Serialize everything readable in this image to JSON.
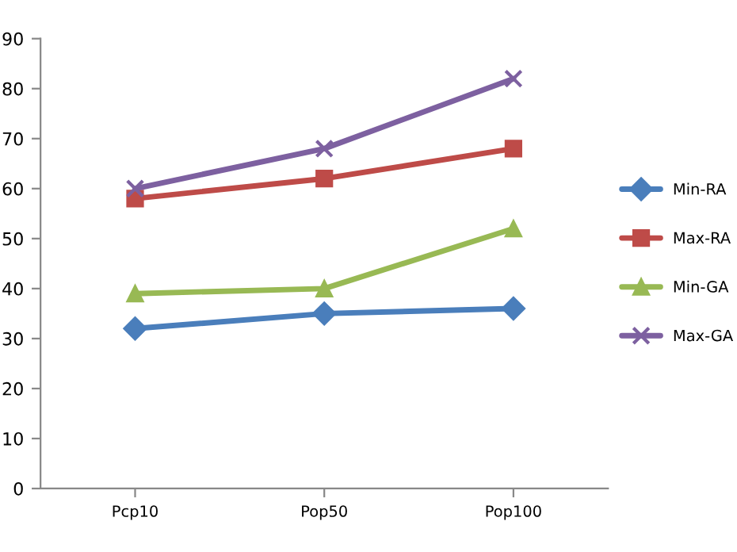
{
  "chart_data": {
    "type": "line",
    "categories": [
      "Pcp10",
      "Pop50",
      "Pop100"
    ],
    "series": [
      {
        "name": "Min-RA",
        "color": "#4a7ebb",
        "marker": "diamond",
        "values": [
          32,
          35,
          36
        ]
      },
      {
        "name": "Max-RA",
        "color": "#be4b48",
        "marker": "square",
        "values": [
          58,
          62,
          68
        ]
      },
      {
        "name": "Min-GA",
        "color": "#98b954",
        "marker": "triangle",
        "values": [
          39,
          40,
          52
        ]
      },
      {
        "name": "Max-GA",
        "color": "#7d60a0",
        "marker": "cross",
        "values": [
          60,
          68,
          82
        ]
      }
    ],
    "ylim": [
      0,
      90
    ],
    "yticks": [
      0,
      10,
      20,
      30,
      40,
      50,
      60,
      70,
      80,
      90
    ],
    "grid": false,
    "legend": "right"
  }
}
